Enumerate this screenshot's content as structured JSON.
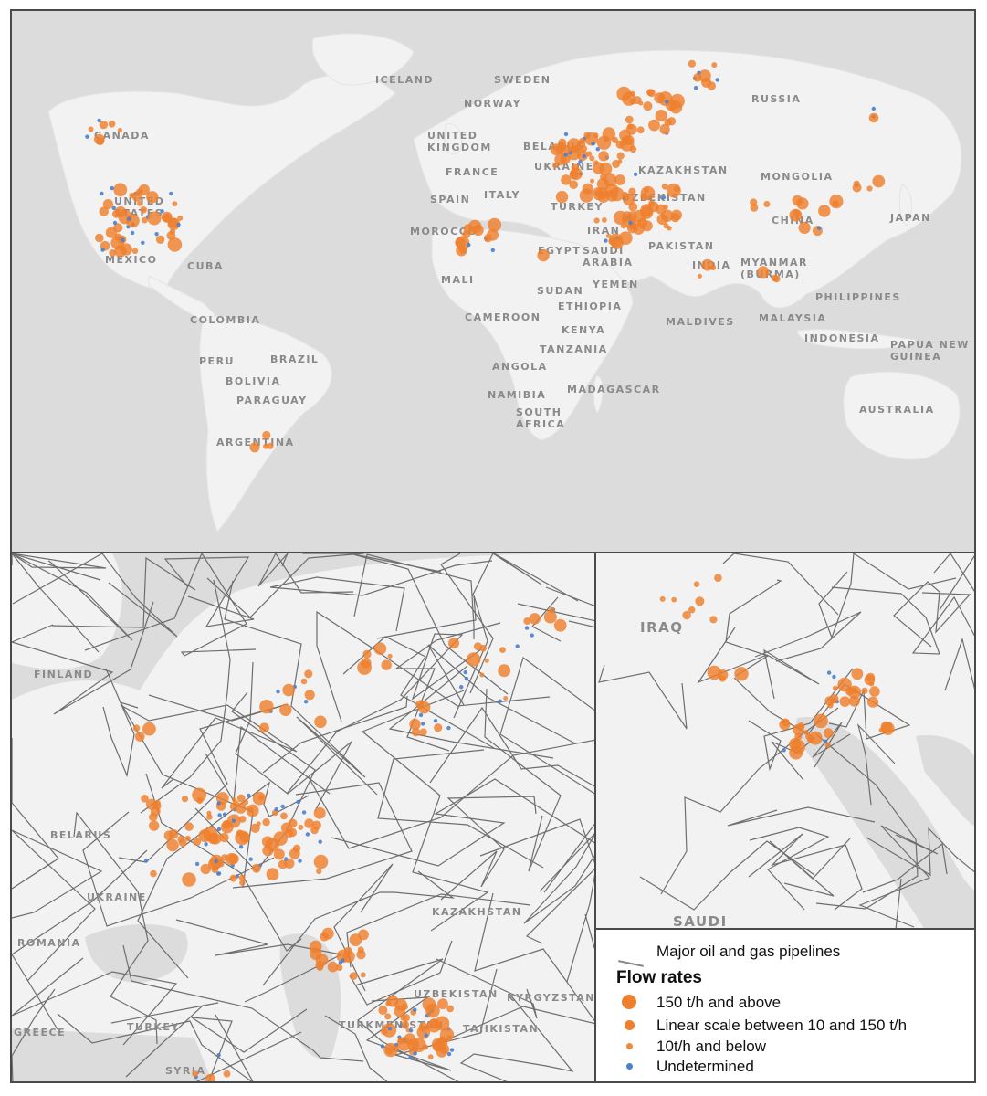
{
  "colors": {
    "land": "#f2f2f2",
    "sea": "#dcdcdc",
    "site_large": "#ee7f2d",
    "site_small": "#ee8a3a",
    "undetermined": "#4a80d0",
    "pipeline": "#6e6e6e"
  },
  "world_map": {
    "labels": [
      "ICELAND",
      "SWEDEN",
      "NORWAY",
      "RUSSIA",
      "CANADA",
      "UNITED KINGDOM",
      "BELARUS",
      "UKRAINE",
      "KAZAKHSTAN",
      "MONGOLIA",
      "FRANCE",
      "SPAIN",
      "ITALY",
      "TURKEY",
      "UNITED STATES",
      "UZBEKISTAN",
      "CHINA",
      "JAPAN",
      "MOROCCO",
      "IRAN",
      "EGYPT",
      "SAUDI ARABIA",
      "PAKISTAN",
      "INDIA",
      "MYANMAR (BURMA)",
      "MEXICO",
      "CUBA",
      "MALI",
      "YEMEN",
      "SUDAN",
      "ETHIOPIA",
      "PHILIPPINES",
      "CAMEROON",
      "COLOMBIA",
      "KENYA",
      "MALDIVES",
      "MALAYSIA",
      "INDONESIA",
      "PAPUA NEW GUINEA",
      "TANZANIA",
      "PERU",
      "BRAZIL",
      "BOLIVIA",
      "ANGOLA",
      "PARAGUAY",
      "NAMIBIA",
      "MADAGASCAR",
      "SOUTH AFRICA",
      "AUSTRALIA",
      "ARGENTINA"
    ]
  },
  "russia_inset": {
    "labels": [
      "FINLAND",
      "BELARUS",
      "UKRAINE",
      "ROMANIA",
      "KAZAKHSTAN",
      "UZBEKISTAN",
      "KYRGYZSTAN",
      "TURKMENISTAN",
      "TAJIKISTAN",
      "GREECE",
      "TURKEY",
      "SYRIA"
    ]
  },
  "gulf_inset": {
    "labels": [
      "IRAQ",
      "SAUDI"
    ]
  },
  "legend": {
    "pipelines": "Major oil and gas pipelines",
    "title": "Flow rates",
    "large": "150 t/h and above",
    "medium": "Linear scale between 10 and 150 t/h",
    "small": "10t/h and below",
    "undetermined": "Undetermined"
  }
}
